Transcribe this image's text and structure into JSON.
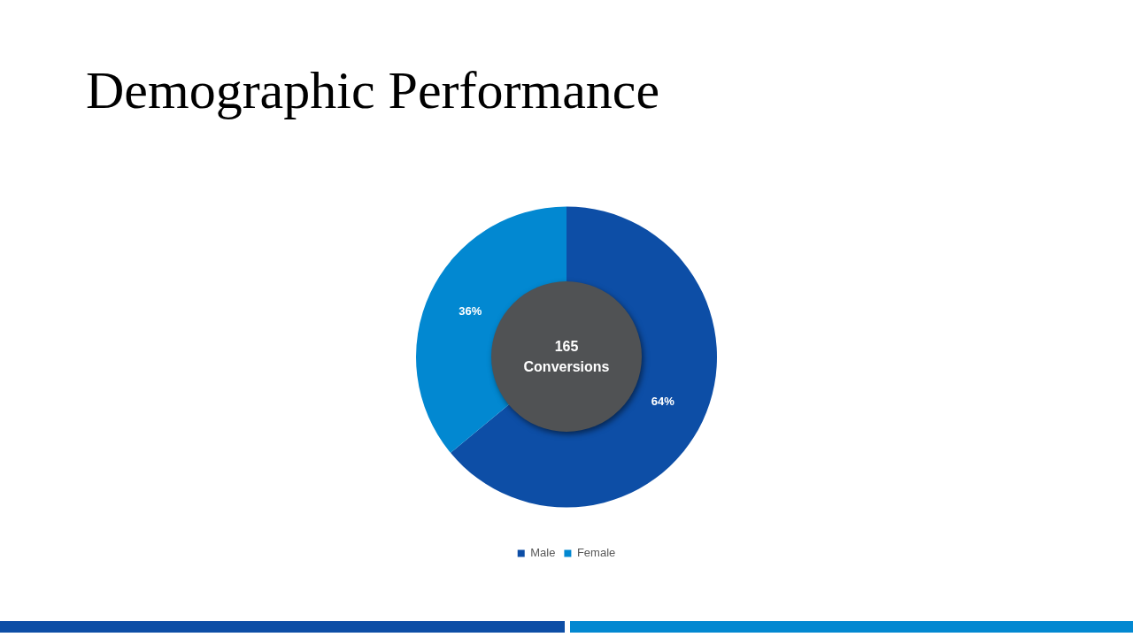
{
  "chart_data": {
    "type": "donut",
    "title": "Demographic Performance",
    "categories": [
      "Male",
      "Female"
    ],
    "values": [
      64,
      36
    ],
    "colors": [
      "#0d4ea6",
      "#0288d1"
    ],
    "value_labels": [
      "64%",
      "36%"
    ],
    "annotations": [
      "165\nConversions"
    ],
    "legend": "bottom"
  }
}
